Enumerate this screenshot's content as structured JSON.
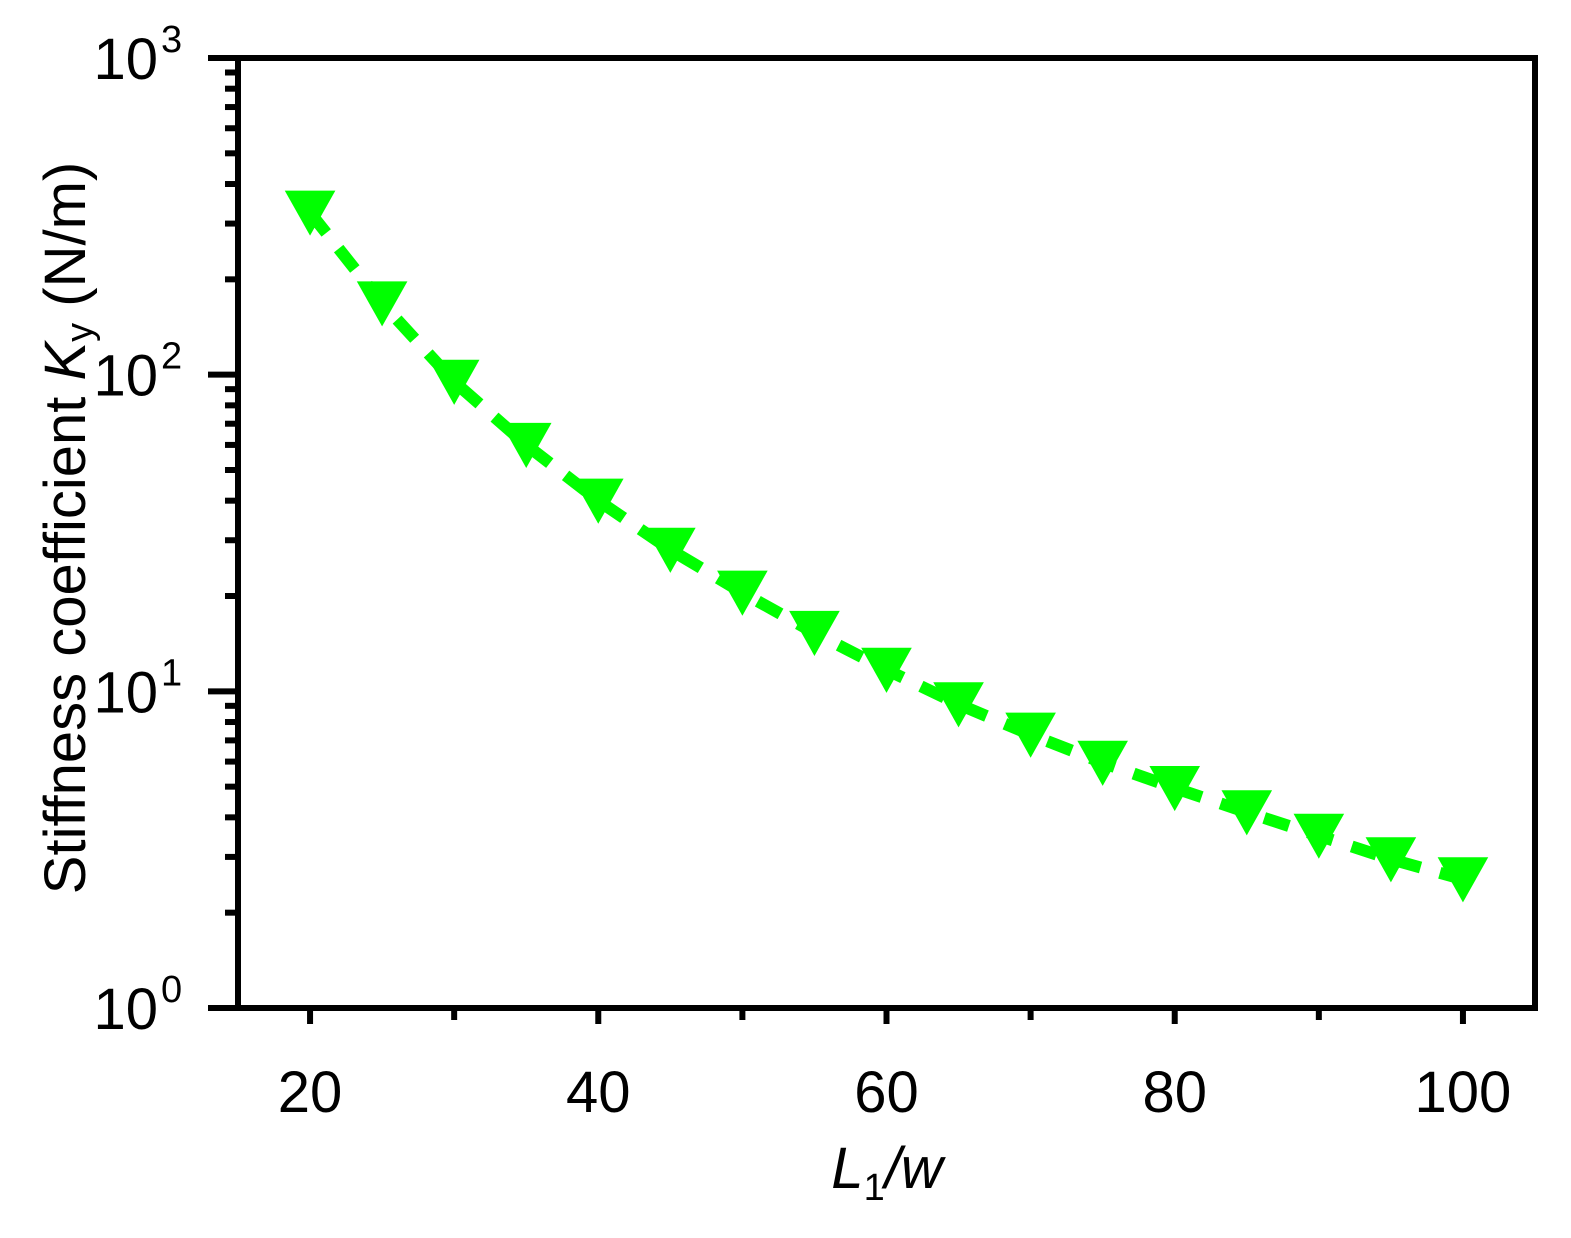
{
  "chart_data": {
    "type": "scatter",
    "xlabel": {
      "main": "L",
      "sub": "1",
      "rest": "/w"
    },
    "ylabel": {
      "main": "Stiffness coefficient ",
      "italic": "K",
      "sub": "y",
      "rest": " (N/m)"
    },
    "x_scale": "linear",
    "y_scale": "log",
    "xlim": [
      15,
      105
    ],
    "ylim": [
      1,
      1000
    ],
    "x_ticks": [
      20,
      40,
      60,
      80,
      100
    ],
    "x_tick_labels": [
      "20",
      "40",
      "60",
      "80",
      "100"
    ],
    "y_ticks": [
      {
        "value": 1,
        "base": "10",
        "exp": "0"
      },
      {
        "value": 10,
        "base": "10",
        "exp": "1"
      },
      {
        "value": 100,
        "base": "10",
        "exp": "2"
      },
      {
        "value": 1000,
        "base": "10",
        "exp": "3"
      }
    ],
    "grid": false,
    "legend": "none",
    "series": [
      {
        "marker": "down-triangle",
        "line_style": "dashed",
        "color": "#00FF00",
        "x": [
          20,
          25,
          30,
          35,
          40,
          45,
          50,
          55,
          60,
          65,
          70,
          75,
          80,
          85,
          90,
          95,
          100
        ],
        "y": [
          325,
          168,
          95,
          60,
          40,
          28,
          20.5,
          15.3,
          11.7,
          9.1,
          7.3,
          5.95,
          4.95,
          4.15,
          3.5,
          2.95,
          2.55
        ]
      }
    ]
  }
}
